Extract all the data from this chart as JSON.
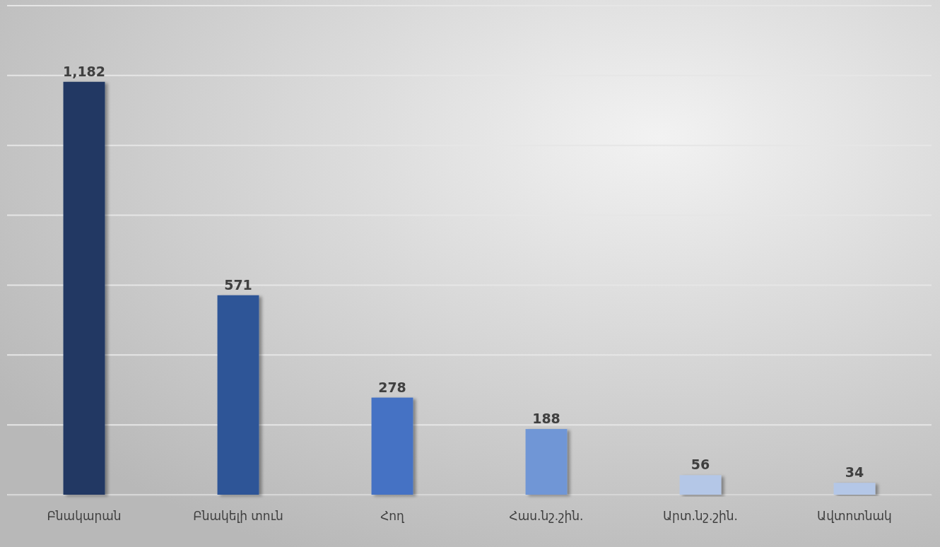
{
  "chart_data": {
    "type": "bar",
    "categories": [
      "Բնակարան",
      "Բնակելի տուն",
      "Հող",
      "Հաս.նշ.շին.",
      "Արտ.նշ.շին.",
      "Ավտոտնակ"
    ],
    "values": [
      1182,
      571,
      278,
      188,
      56,
      34
    ],
    "colors": [
      "#203864",
      "#2f5597",
      "#4472c4",
      "#6f96d6",
      "#b4c7e7",
      "#b4c7e7"
    ],
    "value_labels": [
      "1,182",
      "571",
      "278",
      "188",
      "56",
      "34"
    ],
    "ylim": [
      0,
      1400
    ],
    "yticks": [
      {
        "value": 0,
        "label": null
      },
      {
        "value": 200,
        "label": null
      },
      {
        "value": 400,
        "label": null
      },
      {
        "value": 600,
        "label": null
      },
      {
        "value": 800,
        "label": null
      },
      {
        "value": 1000,
        "label": null
      },
      {
        "value": 1200,
        "label": null
      },
      {
        "value": 1400,
        "label": null
      }
    ],
    "tick_labels": "x",
    "grid": "y"
  }
}
